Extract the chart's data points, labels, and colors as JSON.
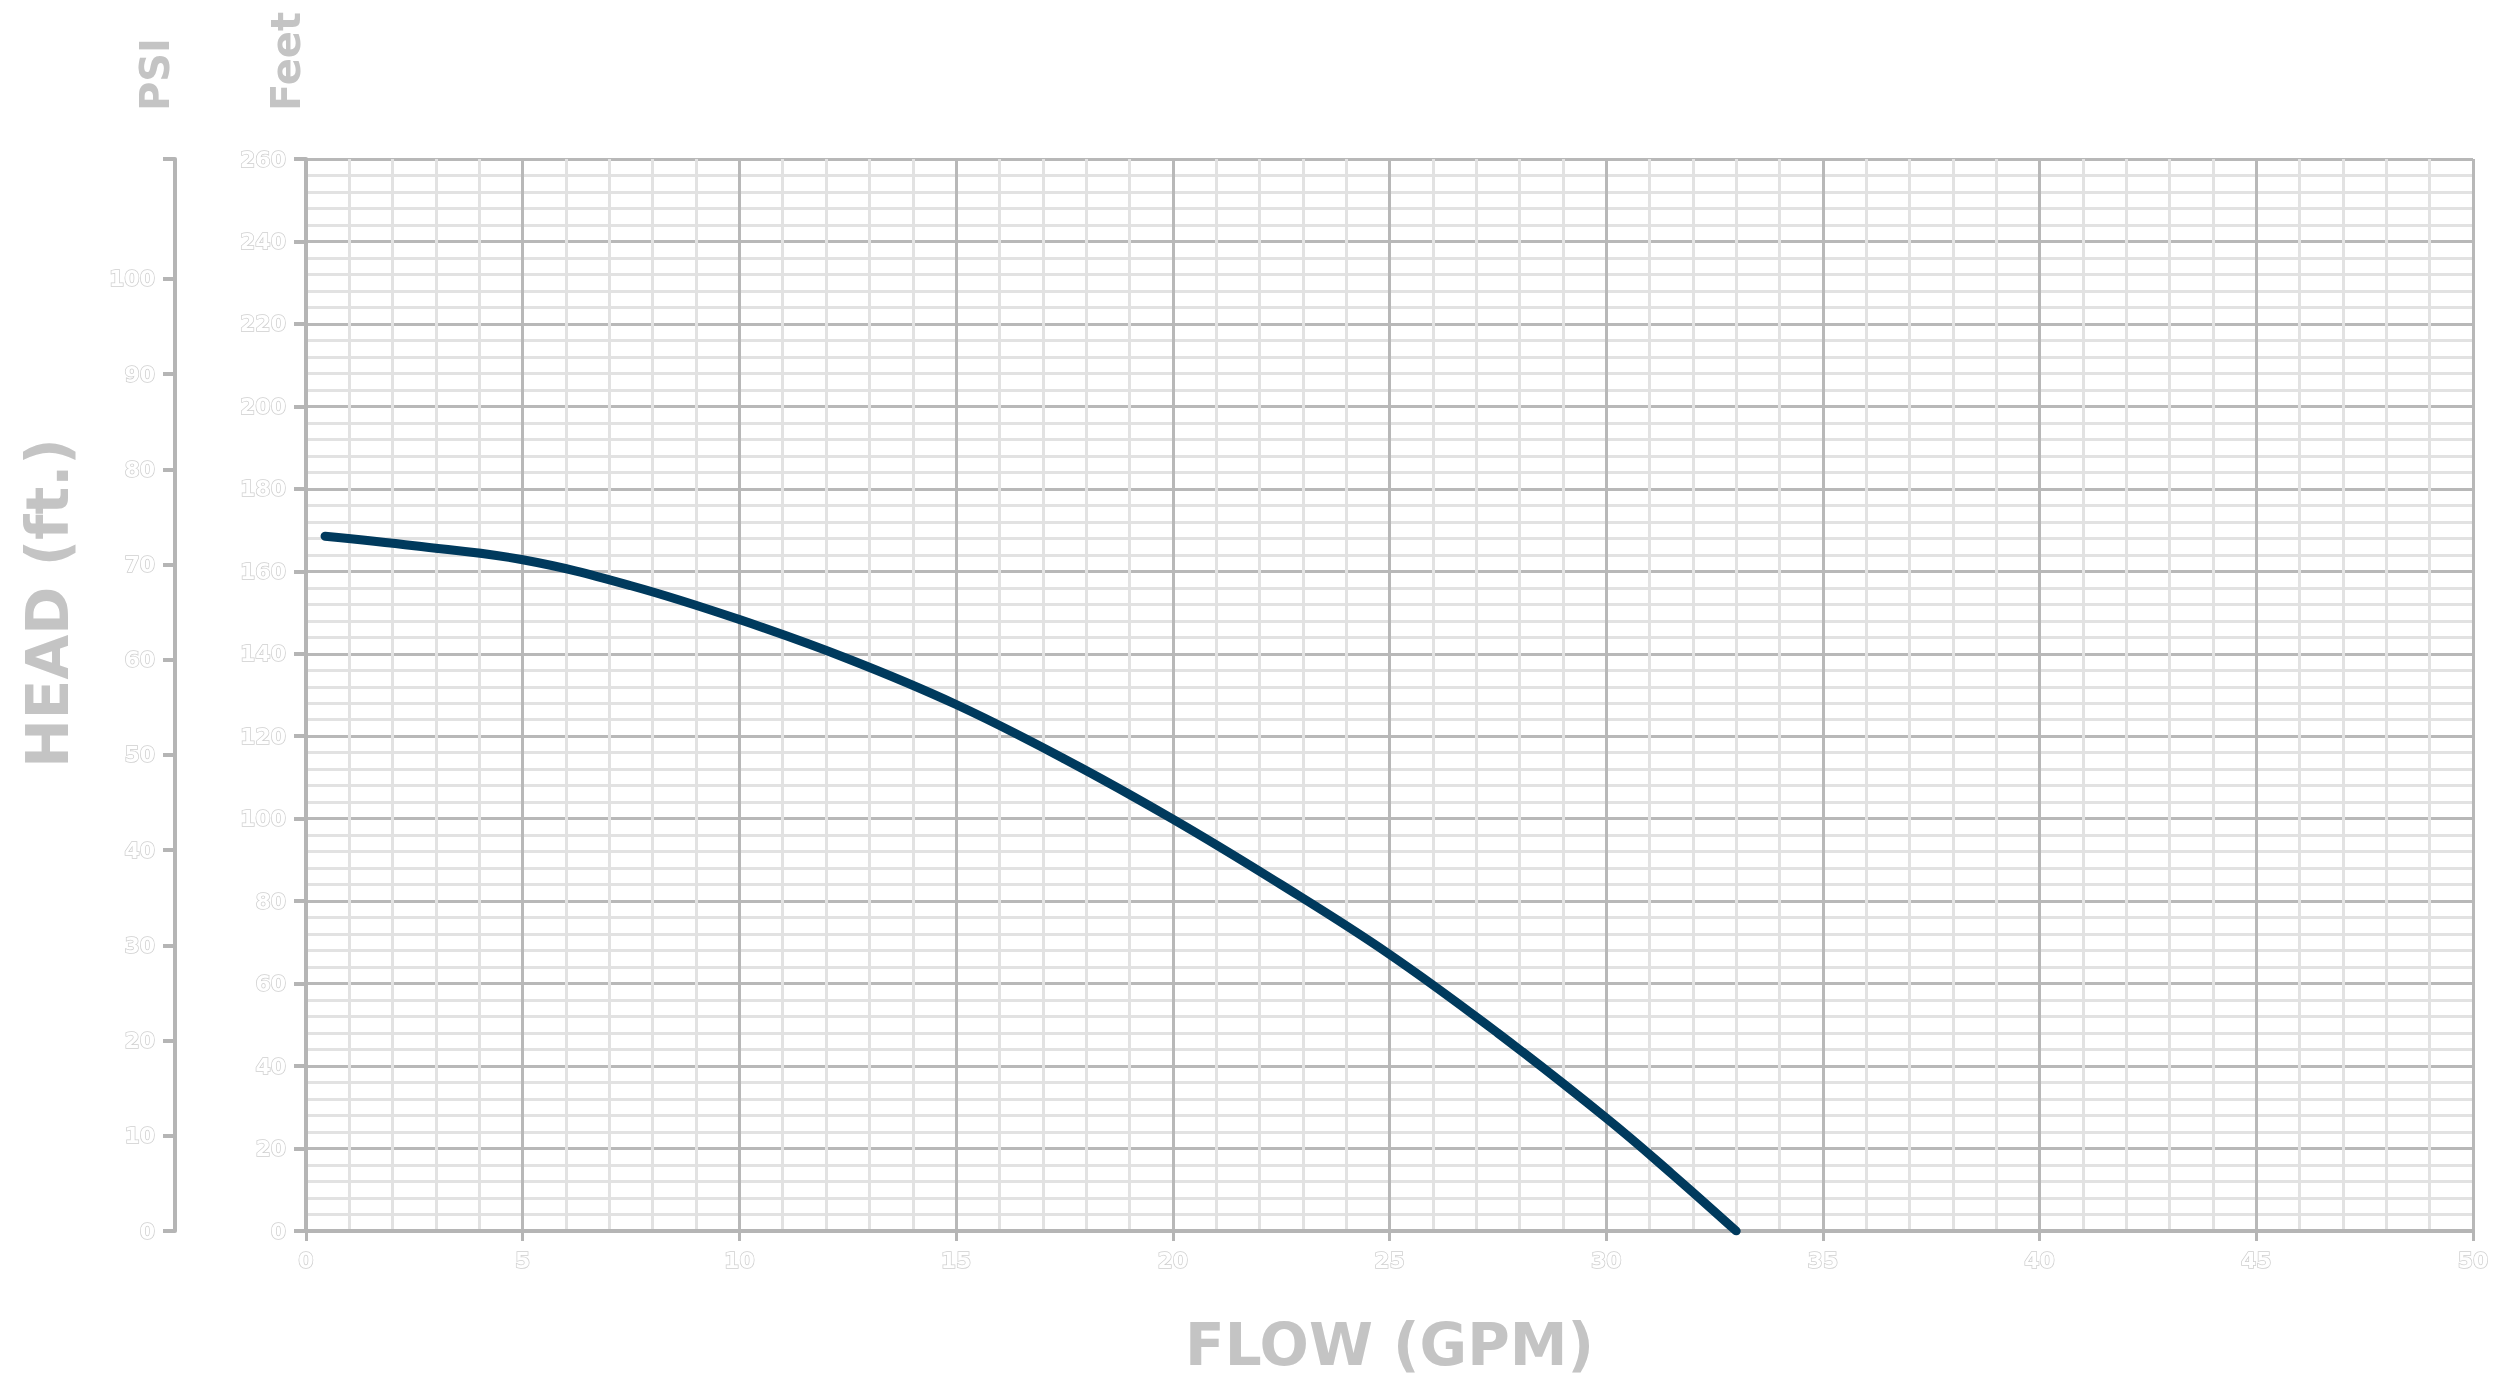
{
  "chart_data": {
    "type": "line",
    "xlabel": "FLOW (GPM)",
    "ylabel": "Feet",
    "y2label": "PSI",
    "annotations": [
      "HEAD (ft.)"
    ],
    "series": [
      {
        "color": "#003a5d",
        "x": [
          0.44,
          2.5,
          5,
          7.5,
          10,
          12.5,
          15,
          17.5,
          20,
          22.5,
          25,
          27.5,
          30,
          31.5,
          33
        ],
        "values": [
          168.5,
          166.2,
          162.8,
          156.5,
          148.3,
          138.8,
          127.7,
          114.5,
          99.9,
          84,
          67.1,
          48,
          27.4,
          14,
          0
        ]
      }
    ],
    "xlim": [
      0,
      50
    ],
    "xticks": [
      0,
      5,
      10,
      15,
      20,
      25,
      30,
      35,
      40,
      45,
      50
    ],
    "ylim": [
      0,
      260
    ],
    "yticks": [
      0,
      20,
      40,
      60,
      80,
      100,
      120,
      140,
      160,
      180,
      200,
      220,
      240,
      260
    ],
    "y2lim": [
      0,
      112.6
    ],
    "y2ticks": [
      0,
      10,
      20,
      30,
      40,
      50,
      60,
      70,
      80,
      90,
      100,
      {
        "value": 112.6,
        "label": null
      }
    ],
    "grid": true,
    "line_style": "solid"
  }
}
